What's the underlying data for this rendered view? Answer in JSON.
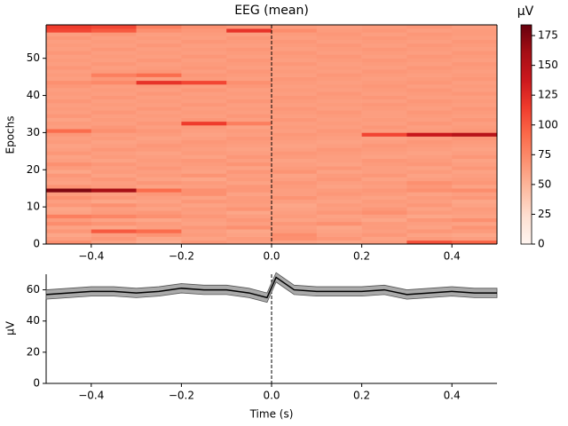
{
  "chart_data": [
    {
      "type": "heatmap",
      "title": "EEG (mean)",
      "y_label": "Epochs",
      "colormap": "Reds",
      "vline": 0,
      "xbins": [
        -0.5,
        -0.4,
        -0.3,
        -0.2,
        -0.1,
        0,
        0.1,
        0.2,
        0.3,
        0.4,
        0.5
      ],
      "xlim": [
        -0.5,
        0.5
      ],
      "xticks": [
        {
          "value": -0.4,
          "label": "−0.4"
        },
        {
          "value": -0.2,
          "label": "−0.2"
        },
        {
          "value": 0,
          "label": "0.0"
        },
        0.2,
        0.4
      ],
      "ylim": [
        0,
        59
      ],
      "yticks": [
        0,
        10,
        20,
        30,
        40,
        50
      ],
      "colorbar": {
        "label": "µV",
        "lim": [
          0,
          184
        ],
        "ticks": [
          0,
          25,
          50,
          75,
          100,
          125,
          150,
          175
        ]
      },
      "values": [
        [
          70,
          60,
          55,
          65,
          62,
          60,
          58,
          62,
          105,
          95
        ],
        [
          62,
          66,
          58,
          60,
          64,
          70,
          66,
          60,
          64,
          62
        ],
        [
          58,
          62,
          68,
          64,
          60,
          72,
          62,
          66,
          60,
          58
        ],
        [
          66,
          100,
          90,
          62,
          58,
          64,
          60,
          62,
          66,
          64
        ],
        [
          60,
          58,
          62,
          66,
          70,
          62,
          58,
          64,
          60,
          68
        ],
        [
          72,
          68,
          64,
          60,
          62,
          66,
          70,
          64,
          62,
          60
        ],
        [
          64,
          60,
          58,
          62,
          66,
          60,
          62,
          58,
          66,
          70
        ],
        [
          80,
          76,
          70,
          66,
          62,
          64,
          60,
          62,
          58,
          60
        ],
        [
          60,
          64,
          66,
          62,
          58,
          62,
          66,
          70,
          64,
          62
        ],
        [
          58,
          62,
          60,
          64,
          68,
          60,
          62,
          66,
          60,
          64
        ],
        [
          66,
          70,
          64,
          60,
          62,
          58,
          64,
          62,
          66,
          60
        ],
        [
          62,
          58,
          60,
          66,
          64,
          62,
          60,
          64,
          62,
          58
        ],
        [
          70,
          66,
          62,
          60,
          64,
          68,
          62,
          60,
          64,
          66
        ],
        [
          64,
          62,
          66,
          70,
          60,
          62,
          66,
          64,
          60,
          62
        ],
        [
          175,
          160,
          90,
          70,
          66,
          62,
          64,
          66,
          70,
          72
        ],
        [
          68,
          64,
          60,
          62,
          66,
          64,
          60,
          62,
          66,
          60
        ],
        [
          60,
          62,
          66,
          64,
          60,
          66,
          62,
          64,
          70,
          66
        ],
        [
          62,
          66,
          60,
          58,
          64,
          62,
          66,
          60,
          62,
          64
        ],
        [
          66,
          60,
          64,
          68,
          62,
          60,
          64,
          66,
          60,
          62
        ],
        [
          58,
          64,
          62,
          60,
          66,
          68,
          60,
          62,
          64,
          60
        ],
        [
          64,
          62,
          66,
          62,
          60,
          64,
          66,
          62,
          60,
          66
        ],
        [
          70,
          66,
          62,
          64,
          68,
          62,
          60,
          64,
          66,
          62
        ],
        [
          62,
          60,
          64,
          66,
          62,
          60,
          62,
          66,
          64,
          60
        ],
        [
          60,
          64,
          62,
          60,
          66,
          64,
          62,
          60,
          62,
          66
        ],
        [
          66,
          62,
          60,
          64,
          62,
          66,
          64,
          62,
          60,
          62
        ],
        [
          62,
          66,
          64,
          62,
          60,
          62,
          66,
          64,
          62,
          60
        ],
        [
          60,
          62,
          66,
          64,
          62,
          60,
          62,
          66,
          64,
          62
        ],
        [
          64,
          60,
          62,
          66,
          64,
          62,
          60,
          62,
          66,
          64
        ],
        [
          62,
          64,
          60,
          62,
          66,
          64,
          62,
          60,
          62,
          66
        ],
        [
          66,
          62,
          64,
          60,
          62,
          66,
          64,
          110,
          140,
          150
        ],
        [
          90,
          70,
          66,
          62,
          64,
          62,
          66,
          62,
          64,
          66
        ],
        [
          62,
          66,
          62,
          64,
          60,
          64,
          62,
          66,
          62,
          64
        ],
        [
          64,
          62,
          66,
          115,
          80,
          62,
          64,
          62,
          66,
          62
        ],
        [
          60,
          64,
          62,
          66,
          62,
          66,
          62,
          64,
          62,
          66
        ],
        [
          66,
          62,
          64,
          62,
          66,
          62,
          64,
          62,
          64,
          62
        ],
        [
          62,
          66,
          62,
          64,
          62,
          64,
          66,
          62,
          66,
          64
        ],
        [
          64,
          62,
          66,
          62,
          64,
          66,
          62,
          64,
          62,
          66
        ],
        [
          62,
          64,
          62,
          66,
          62,
          62,
          64,
          66,
          64,
          62
        ],
        [
          66,
          62,
          64,
          62,
          66,
          64,
          62,
          62,
          66,
          64
        ],
        [
          62,
          66,
          62,
          64,
          62,
          66,
          64,
          66,
          62,
          62
        ],
        [
          64,
          62,
          66,
          62,
          64,
          62,
          66,
          62,
          64,
          66
        ],
        [
          62,
          64,
          62,
          66,
          62,
          64,
          62,
          64,
          66,
          62
        ],
        [
          66,
          62,
          64,
          62,
          66,
          62,
          64,
          66,
          62,
          64
        ],
        [
          70,
          74,
          120,
          110,
          70,
          64,
          62,
          64,
          66,
          62
        ],
        [
          62,
          66,
          62,
          64,
          62,
          66,
          64,
          62,
          64,
          66
        ],
        [
          64,
          80,
          90,
          66,
          64,
          62,
          66,
          64,
          62,
          64
        ],
        [
          62,
          64,
          66,
          62,
          66,
          64,
          62,
          66,
          64,
          62
        ],
        [
          66,
          62,
          64,
          66,
          62,
          62,
          64,
          62,
          66,
          64
        ],
        [
          62,
          66,
          62,
          64,
          64,
          66,
          62,
          64,
          62,
          66
        ],
        [
          64,
          62,
          66,
          62,
          66,
          62,
          64,
          66,
          64,
          62
        ],
        [
          62,
          64,
          62,
          66,
          62,
          64,
          66,
          62,
          66,
          64
        ],
        [
          66,
          62,
          64,
          62,
          64,
          66,
          62,
          64,
          62,
          66
        ],
        [
          62,
          66,
          62,
          64,
          66,
          62,
          64,
          66,
          64,
          62
        ],
        [
          64,
          62,
          66,
          62,
          62,
          64,
          66,
          62,
          66,
          64
        ],
        [
          62,
          64,
          62,
          66,
          64,
          66,
          62,
          64,
          62,
          66
        ],
        [
          66,
          62,
          64,
          62,
          66,
          62,
          64,
          66,
          64,
          62
        ],
        [
          62,
          66,
          62,
          64,
          62,
          64,
          66,
          62,
          66,
          64
        ],
        [
          110,
          100,
          70,
          66,
          120,
          72,
          64,
          66,
          62,
          64
        ],
        [
          115,
          110,
          80,
          70,
          66,
          64,
          62,
          64,
          66,
          62
        ]
      ]
    },
    {
      "type": "line",
      "x_label": "Time (s)",
      "y_label": "µV",
      "color": "#000000",
      "band_color": "#aaaaaa",
      "vline": 0,
      "x": [
        -0.5,
        -0.45,
        -0.4,
        -0.35,
        -0.3,
        -0.25,
        -0.2,
        -0.15,
        -0.1,
        -0.05,
        -0.01,
        0.01,
        0.05,
        0.1,
        0.15,
        0.2,
        0.25,
        0.3,
        0.35,
        0.4,
        0.45,
        0.5
      ],
      "values": [
        57,
        58,
        59,
        59,
        58,
        59,
        61,
        60,
        60,
        58,
        55,
        68,
        60,
        59,
        59,
        59,
        60,
        57,
        58,
        59,
        58,
        58
      ],
      "lower": [
        54,
        55,
        56,
        56,
        55,
        56,
        58,
        57,
        57,
        55,
        52,
        65,
        57,
        56,
        56,
        56,
        57,
        54,
        55,
        56,
        55,
        55
      ],
      "upper": [
        60,
        61,
        62,
        62,
        61,
        62,
        64,
        63,
        63,
        61,
        58,
        71,
        63,
        62,
        62,
        62,
        63,
        60,
        61,
        62,
        61,
        61
      ],
      "xlim": [
        -0.5,
        0.5
      ],
      "xticks": [
        {
          "value": -0.4,
          "label": "−0.4"
        },
        {
          "value": -0.2,
          "label": "−0.2"
        },
        {
          "value": 0,
          "label": "0.0"
        },
        0.2,
        0.4
      ],
      "ylim": [
        0,
        70
      ],
      "yticks": [
        0,
        20,
        40,
        60
      ]
    }
  ]
}
